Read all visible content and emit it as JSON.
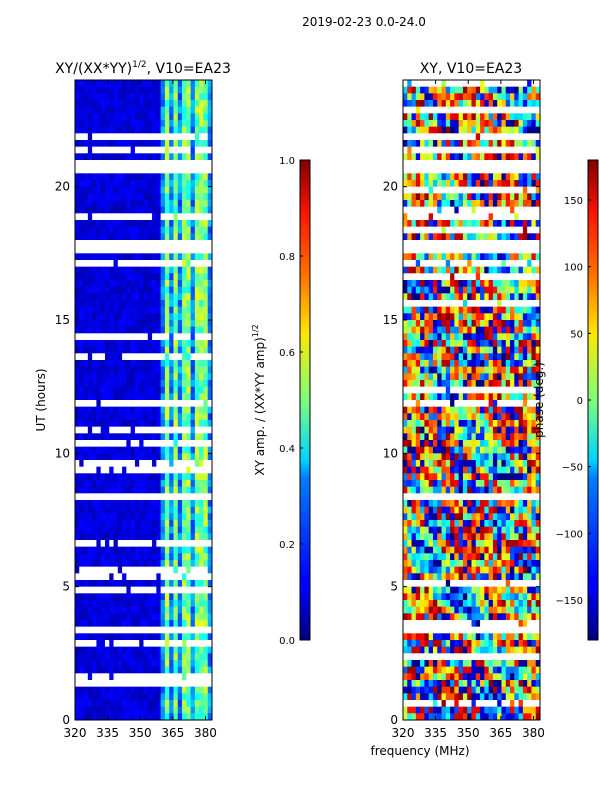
{
  "suptitle": "2019-02-23 0.0-24.0",
  "chart_data": [
    {
      "type": "heatmap",
      "title_main": "XY/(XX*YY)",
      "title_exp": "1/2",
      "title_rest": ", V10=EA23",
      "xlabel": "",
      "ylabel": "UT (hours)",
      "xlim": [
        320,
        383
      ],
      "ylim": [
        0,
        24
      ],
      "xticks": [
        "320",
        "335",
        "350",
        "365",
        "380"
      ],
      "xtick_values": [
        320,
        335,
        350,
        365,
        380
      ],
      "yticks": [
        "0",
        "5",
        "10",
        "15",
        "20"
      ],
      "ytick_values": [
        0,
        5,
        10,
        15,
        20
      ],
      "colorscale": "jet",
      "vmin": 0.0,
      "vmax": 1.0,
      "colorbar_label_main": "XY amp. / (XX*YY amp)",
      "colorbar_label_exp": "1/2",
      "colorbar_ticks": [
        "0.0",
        "0.2",
        "0.4",
        "0.6",
        "0.8",
        "1.0"
      ],
      "colorbar_tick_values": [
        0.0,
        0.2,
        0.4,
        0.6,
        0.8,
        1.0
      ],
      "gaps_ut": [
        [
          17.6,
          18.1
        ],
        [
          20.4,
          20.9
        ],
        [
          8.2,
          8.6
        ],
        [
          15.2,
          15.3
        ],
        [
          5.2,
          5.3
        ],
        [
          3.3,
          3.4
        ]
      ],
      "bright_channels_mhz": [
        [
          361,
          362.5
        ],
        [
          365,
          367.5
        ],
        [
          370,
          373
        ],
        [
          376,
          379
        ],
        [
          380,
          382
        ]
      ]
    },
    {
      "type": "heatmap",
      "title": "XY, V10=EA23",
      "xlabel": "frequency (MHz)",
      "ylabel": "",
      "xlim": [
        320,
        383
      ],
      "ylim": [
        0,
        24
      ],
      "xticks": [
        "320",
        "335",
        "350",
        "365",
        "380"
      ],
      "xtick_values": [
        320,
        335,
        350,
        365,
        380
      ],
      "yticks": [
        "0",
        "5",
        "10",
        "15",
        "20"
      ],
      "ytick_values": [
        0,
        5,
        10,
        15,
        20
      ],
      "colorscale": "jet",
      "vmin": -180,
      "vmax": 180,
      "colorbar_label": "phase (deg.)",
      "colorbar_ticks": [
        "−150",
        "−100",
        "−50",
        "0",
        "50",
        "100",
        "150"
      ],
      "colorbar_tick_values": [
        -150,
        -100,
        -50,
        0,
        50,
        100,
        150
      ],
      "gaps_ut": [
        [
          17.6,
          18.1
        ],
        [
          20.4,
          20.9
        ],
        [
          8.2,
          8.6
        ],
        [
          15.2,
          15.3
        ],
        [
          5.2,
          5.3
        ],
        [
          3.3,
          3.4
        ]
      ]
    }
  ]
}
